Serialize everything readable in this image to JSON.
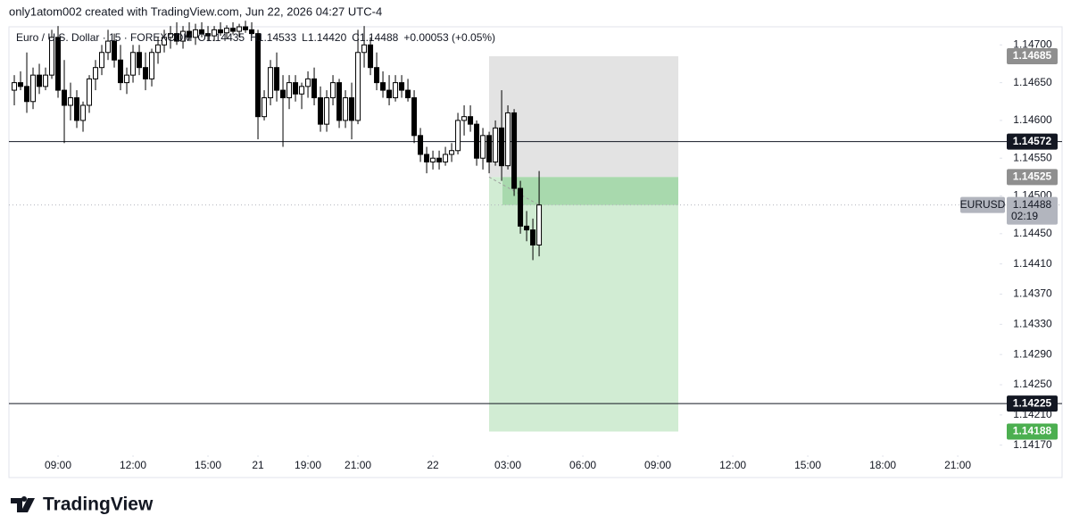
{
  "header": "only1atom002 created with TradingView.com, Jun 22, 2026 04:27 UTC-4",
  "footer": "TradingView",
  "chart_data": {
    "type": "candlestick",
    "title": "Euro / U.S. Dollar · 15 · FOREXCOM",
    "legend_items": [
      {
        "key": "O",
        "value": "1.14435"
      },
      {
        "key": "H",
        "value": "1.14533"
      },
      {
        "key": "L",
        "value": "1.14420"
      },
      {
        "key": "C",
        "value": "1.14488"
      }
    ],
    "change": "+0.00053 (+0.05%)",
    "symbol": "EURUSD",
    "countdown": "02:19",
    "up_color": "#ffffff",
    "down_color": "#000000",
    "border_color": "#000000",
    "open": [
      1.1464,
      1.1465,
      1.14645,
      1.14625,
      1.1466,
      1.14645,
      1.1466,
      1.1471,
      1.1464,
      1.1462,
      1.1463,
      1.146,
      1.1462,
      1.14655,
      1.1467,
      1.1469,
      1.14705,
      1.1468,
      1.1465,
      1.1466,
      1.1469,
      1.1467,
      1.14655,
      1.1469,
      1.147,
      1.1471,
      1.14715,
      1.14705,
      1.14718,
      1.1471,
      1.1472,
      1.14715,
      1.14712,
      1.1472,
      1.14716,
      1.14722,
      1.14718,
      1.14724,
      1.1472,
      1.14715,
      1.14605,
      1.1463,
      1.1467,
      1.1464,
      1.1463,
      1.1465,
      1.14635,
      1.14645,
      1.14655,
      1.1463,
      1.14595,
      1.1463,
      1.1465,
      1.146,
      1.1463,
      1.146,
      1.1469,
      1.147,
      1.1467,
      1.1465,
      1.1464,
      1.1463,
      1.1465,
      1.1464,
      1.1463,
      1.1458,
      1.14555,
      1.14545,
      1.1455,
      1.14545,
      1.14555,
      1.1456,
      1.146,
      1.14605,
      1.14595,
      1.1455,
      1.1458,
      1.14545,
      1.1459,
      1.1454,
      1.1461,
      1.1451,
      1.1446,
      1.14455,
      1.14435
    ],
    "high": [
      1.1466,
      1.14665,
      1.1469,
      1.1467,
      1.14675,
      1.1467,
      1.1472,
      1.14725,
      1.1468,
      1.1465,
      1.1464,
      1.14625,
      1.1466,
      1.1468,
      1.147,
      1.1472,
      1.14715,
      1.147,
      1.1467,
      1.147,
      1.147,
      1.1469,
      1.14695,
      1.1471,
      1.1472,
      1.14725,
      1.1473,
      1.14725,
      1.1473,
      1.14728,
      1.1473,
      1.14725,
      1.14725,
      1.1473,
      1.14726,
      1.1473,
      1.14728,
      1.14732,
      1.1473,
      1.1472,
      1.1464,
      1.1468,
      1.1469,
      1.1466,
      1.1466,
      1.1466,
      1.1465,
      1.14665,
      1.1467,
      1.14645,
      1.1464,
      1.1466,
      1.14655,
      1.1464,
      1.1465,
      1.1472,
      1.14725,
      1.1471,
      1.1469,
      1.14665,
      1.1466,
      1.1466,
      1.1466,
      1.14655,
      1.1464,
      1.1459,
      1.14565,
      1.1456,
      1.1456,
      1.14565,
      1.1457,
      1.1461,
      1.1462,
      1.1462,
      1.146,
      1.1459,
      1.14585,
      1.146,
      1.1464,
      1.1462,
      1.14615,
      1.1452,
      1.1448,
      1.1447,
      1.14533
    ],
    "low": [
      1.1462,
      1.1464,
      1.1461,
      1.14615,
      1.14635,
      1.1464,
      1.14655,
      1.1463,
      1.1457,
      1.146,
      1.1459,
      1.14585,
      1.1461,
      1.1464,
      1.1466,
      1.1468,
      1.1467,
      1.1464,
      1.14635,
      1.1465,
      1.1466,
      1.1464,
      1.14645,
      1.14675,
      1.1469,
      1.14695,
      1.147,
      1.14695,
      1.14705,
      1.147,
      1.1471,
      1.14705,
      1.14705,
      1.14712,
      1.14708,
      1.14714,
      1.1471,
      1.14716,
      1.14712,
      1.14575,
      1.146,
      1.1462,
      1.14625,
      1.14565,
      1.14615,
      1.14625,
      1.14615,
      1.1463,
      1.1462,
      1.14585,
      1.14585,
      1.1462,
      1.1459,
      1.1459,
      1.14575,
      1.14595,
      1.1467,
      1.1466,
      1.1464,
      1.1463,
      1.1462,
      1.14625,
      1.1463,
      1.14625,
      1.1457,
      1.14545,
      1.1453,
      1.14535,
      1.14535,
      1.1454,
      1.14545,
      1.14555,
      1.1458,
      1.14585,
      1.1454,
      1.14535,
      1.1453,
      1.1454,
      1.1452,
      1.14535,
      1.145,
      1.1445,
      1.1444,
      1.14415,
      1.1442
    ],
    "close": [
      1.1465,
      1.14645,
      1.14625,
      1.1466,
      1.14645,
      1.1466,
      1.1471,
      1.1464,
      1.1462,
      1.1463,
      1.146,
      1.1462,
      1.14655,
      1.1467,
      1.1469,
      1.14705,
      1.1468,
      1.1465,
      1.1466,
      1.1469,
      1.1467,
      1.14655,
      1.1469,
      1.147,
      1.1471,
      1.14715,
      1.14705,
      1.14718,
      1.1471,
      1.1472,
      1.14715,
      1.14712,
      1.1472,
      1.14716,
      1.14722,
      1.14718,
      1.14724,
      1.1472,
      1.14715,
      1.14605,
      1.1463,
      1.1467,
      1.1464,
      1.1463,
      1.1465,
      1.14635,
      1.14645,
      1.14655,
      1.1463,
      1.14595,
      1.1463,
      1.1465,
      1.146,
      1.1463,
      1.146,
      1.1469,
      1.147,
      1.1467,
      1.1465,
      1.1464,
      1.1463,
      1.1465,
      1.1464,
      1.1463,
      1.1458,
      1.14555,
      1.14545,
      1.1455,
      1.14545,
      1.14555,
      1.1456,
      1.146,
      1.14605,
      1.14595,
      1.1455,
      1.1458,
      1.14545,
      1.1459,
      1.1454,
      1.1461,
      1.1451,
      1.1446,
      1.14455,
      1.14435,
      1.14488
    ],
    "xlim": [
      -0.86,
      157.7
    ],
    "xticks": [
      {
        "value": 7,
        "label": "09:00"
      },
      {
        "value": 19,
        "label": "12:00"
      },
      {
        "value": 31,
        "label": "15:00"
      },
      {
        "value": 39,
        "label": "21"
      },
      {
        "value": 47,
        "label": "19:00"
      },
      {
        "value": 55,
        "label": "21:00"
      },
      {
        "value": 67,
        "label": "22"
      },
      {
        "value": 79,
        "label": "03:00"
      },
      {
        "value": 91,
        "label": "06:00"
      },
      {
        "value": 103,
        "label": "09:00"
      },
      {
        "value": 115,
        "label": "12:00"
      },
      {
        "value": 127,
        "label": "15:00"
      },
      {
        "value": 139,
        "label": "18:00"
      },
      {
        "value": 151,
        "label": "21:00"
      }
    ],
    "ylim": [
      1.14159,
      1.14724
    ],
    "yticks": [
      {
        "value": 1.1417,
        "label": "1.14170"
      },
      {
        "value": 1.1421,
        "label": "1.14210"
      },
      {
        "value": 1.1425,
        "label": "1.14250"
      },
      {
        "value": 1.1429,
        "label": "1.14290"
      },
      {
        "value": 1.1433,
        "label": "1.14330"
      },
      {
        "value": 1.1437,
        "label": "1.14370"
      },
      {
        "value": 1.1441,
        "label": "1.14410"
      },
      {
        "value": 1.1445,
        "label": "1.14450"
      },
      {
        "value": 1.145,
        "label": "1.14500"
      },
      {
        "value": 1.1455,
        "label": "1.14550"
      },
      {
        "value": 1.146,
        "label": "1.14600"
      },
      {
        "value": 1.1465,
        "label": "1.14650"
      },
      {
        "value": 1.147,
        "label": "1.14700"
      }
    ],
    "lines": [
      1.14572,
      1.14225
    ],
    "line_color": "#131722",
    "position": {
      "stop": 1.14685,
      "entry": 1.14525,
      "target": 1.14188,
      "stop_color": "#e3e3e3",
      "target_color": "#d1ecd3",
      "open_color": "#a8d9ad",
      "stop_label_color": "#8f8f8f",
      "target_label_color": "#4caf50"
    }
  }
}
